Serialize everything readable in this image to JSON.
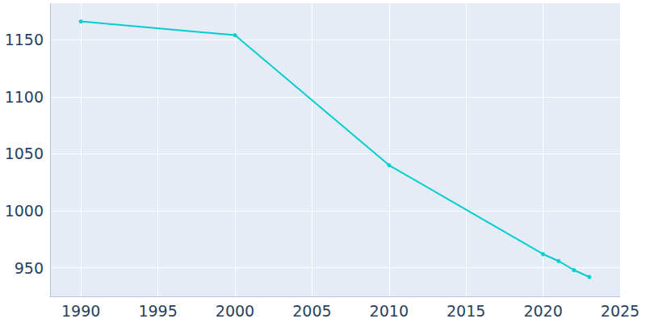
{
  "chart_data": {
    "type": "line",
    "x": [
      1990,
      2000,
      2010,
      2020,
      2021,
      2022,
      2023
    ],
    "values": [
      1166,
      1154,
      1040,
      962,
      956,
      948,
      942
    ],
    "color": "#00ced1",
    "marker": "circle",
    "xlim": [
      1988,
      2025
    ],
    "xticks": [
      1990,
      1995,
      2000,
      2005,
      2010,
      2015,
      2020,
      2025
    ],
    "ylim": [
      925,
      1182
    ],
    "yticks": [
      950,
      1000,
      1050,
      1100,
      1150
    ],
    "grid": true
  }
}
